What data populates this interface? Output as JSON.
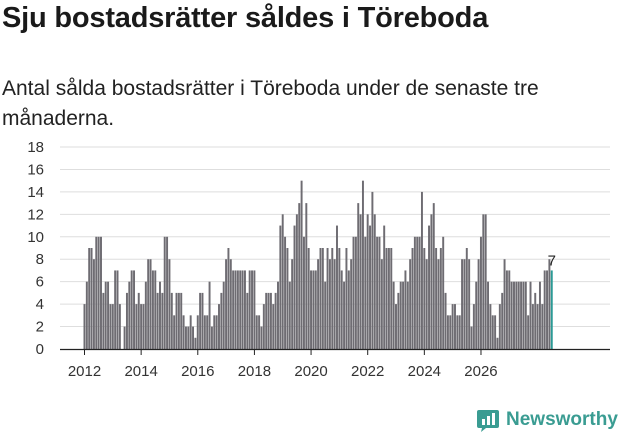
{
  "header": {
    "title": "Sju bostadsrätter såldes i Töreboda",
    "subtitle": "Antal sålda bostadsrätter i Töreboda under de senaste tre månaderna."
  },
  "colors": {
    "bar": "#6e6c72",
    "highlight": "#2b9a95",
    "grid": "#dedede",
    "axis": "#222222",
    "brand": "#3a9c92"
  },
  "chart_data": {
    "type": "bar",
    "title": "Sju bostadsrätter såldes i Töreboda",
    "subtitle": "Antal sålda bostadsrätter i Töreboda under de senaste tre månaderna.",
    "xlabel": "",
    "ylabel": "",
    "ylim": [
      0,
      18
    ],
    "yticks": [
      0,
      2,
      4,
      6,
      8,
      10,
      12,
      14,
      16,
      18
    ],
    "xticks": [
      2012,
      2014,
      2016,
      2018,
      2020,
      2022,
      2024,
      2026
    ],
    "grid": true,
    "start_month": "2012-01",
    "period": "month",
    "values": [
      4,
      6,
      9,
      9,
      8,
      10,
      10,
      10,
      5,
      6,
      6,
      4,
      4,
      7,
      7,
      4,
      0,
      2,
      5,
      6,
      7,
      7,
      4,
      5,
      4,
      4,
      6,
      8,
      8,
      7,
      7,
      5,
      6,
      5,
      10,
      10,
      8,
      5,
      3,
      5,
      5,
      5,
      3,
      2,
      2,
      3,
      2,
      1,
      3,
      5,
      5,
      3,
      3,
      6,
      2,
      3,
      3,
      4,
      5,
      6,
      8,
      9,
      8,
      7,
      7,
      7,
      7,
      7,
      7,
      5,
      7,
      7,
      7,
      3,
      3,
      2,
      4,
      5,
      5,
      5,
      4,
      5,
      6,
      11,
      12,
      10,
      9,
      6,
      8,
      11,
      12,
      13,
      15,
      10,
      13,
      9,
      7,
      7,
      7,
      8,
      9,
      9,
      6,
      9,
      8,
      9,
      8,
      11,
      9,
      7,
      6,
      9,
      7,
      8,
      10,
      10,
      13,
      12,
      15,
      10,
      12,
      11,
      14,
      12,
      10,
      10,
      8,
      11,
      9,
      9,
      9,
      6,
      4,
      5,
      6,
      6,
      7,
      6,
      8,
      9,
      10,
      10,
      10,
      14,
      9,
      8,
      11,
      12,
      13,
      9,
      8,
      9,
      10,
      5,
      3,
      3,
      4,
      4,
      3,
      3,
      8,
      8,
      9,
      8,
      2,
      4,
      6,
      8,
      10,
      12,
      12,
      6,
      4,
      3,
      3,
      1,
      4,
      5,
      8,
      7,
      7,
      6,
      6,
      6,
      6,
      6,
      6,
      6,
      3,
      6,
      4,
      5,
      4,
      6,
      4,
      7,
      7,
      8,
      7
    ],
    "data_label": "7",
    "highlight_last": true
  },
  "branding": {
    "name": "Newsworthy",
    "icon": "newsworthy-logo-icon"
  }
}
